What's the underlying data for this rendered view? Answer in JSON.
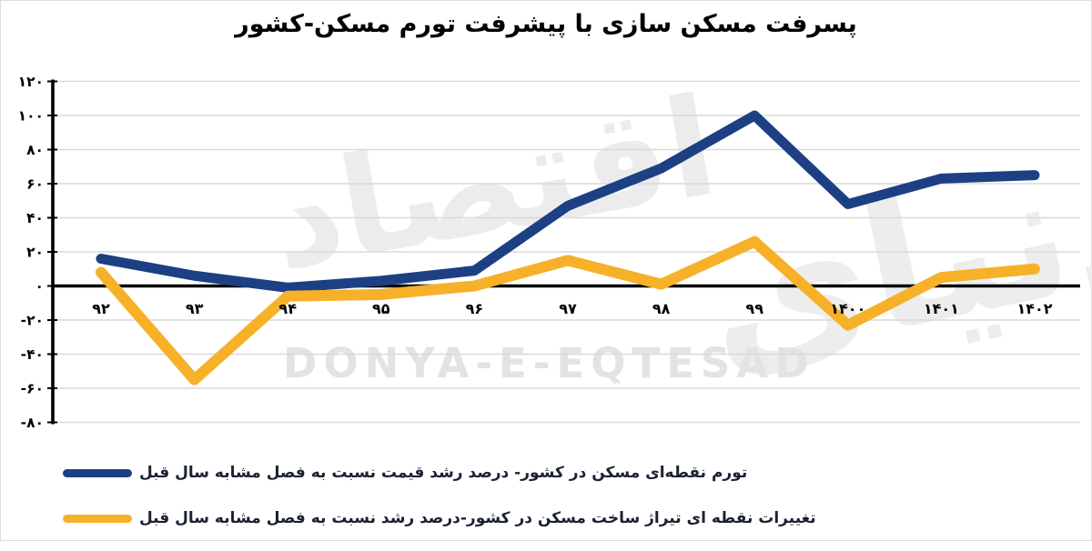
{
  "title": "پسرفت مسکن سازی با پیشرفت تورم مسکن-کشور",
  "watermark": {
    "persian_word_1": "اقتصاد",
    "persian_word_2": "دنیای",
    "latin": "DONYA-E-EQTESAD"
  },
  "chart_data": {
    "type": "line",
    "title": "پسرفت مسکن سازی با پیشرفت تورم مسکن-کشور",
    "categories": [
      "۹۲",
      "۹۳",
      "۹۴",
      "۹۵",
      "۹۶",
      "۹۷",
      "۹۸",
      "۹۹",
      "۱۴۰۰",
      "۱۴۰۱",
      "۱۴۰۲"
    ],
    "ylim": [
      -80,
      120
    ],
    "grid": true,
    "legend_position": "bottom-left",
    "yticks": [
      {
        "value": 120,
        "label": "۱۲۰"
      },
      {
        "value": 100,
        "label": "۱۰۰"
      },
      {
        "value": 80,
        "label": "۸۰"
      },
      {
        "value": 60,
        "label": "۶۰"
      },
      {
        "value": 40,
        "label": "۴۰"
      },
      {
        "value": 20,
        "label": "۲۰"
      },
      {
        "value": 0,
        "label": "۰"
      },
      {
        "value": -20,
        "label": "-۲۰"
      },
      {
        "value": -40,
        "label": "-۴۰"
      },
      {
        "value": -60,
        "label": "-۶۰"
      },
      {
        "value": -80,
        "label": "-۸۰"
      }
    ],
    "series": [
      {
        "name": "تورم نقطه‌ای مسکن در کشور- درصد رشد قیمت نسبت به فصل مشابه سال قبل",
        "color": "#1d4084",
        "values": [
          16,
          6,
          -1,
          3,
          9,
          47,
          69,
          100,
          48,
          63,
          65
        ]
      },
      {
        "name": "تغییرات نقطه ای تیراژ ساخت مسکن در کشور-درصد رشد نسبت به فصل مشابه سال قبل",
        "color": "#f6b129",
        "values": [
          8,
          -55,
          -6,
          -5,
          0,
          15,
          1,
          26,
          -23,
          5,
          10
        ]
      }
    ]
  }
}
